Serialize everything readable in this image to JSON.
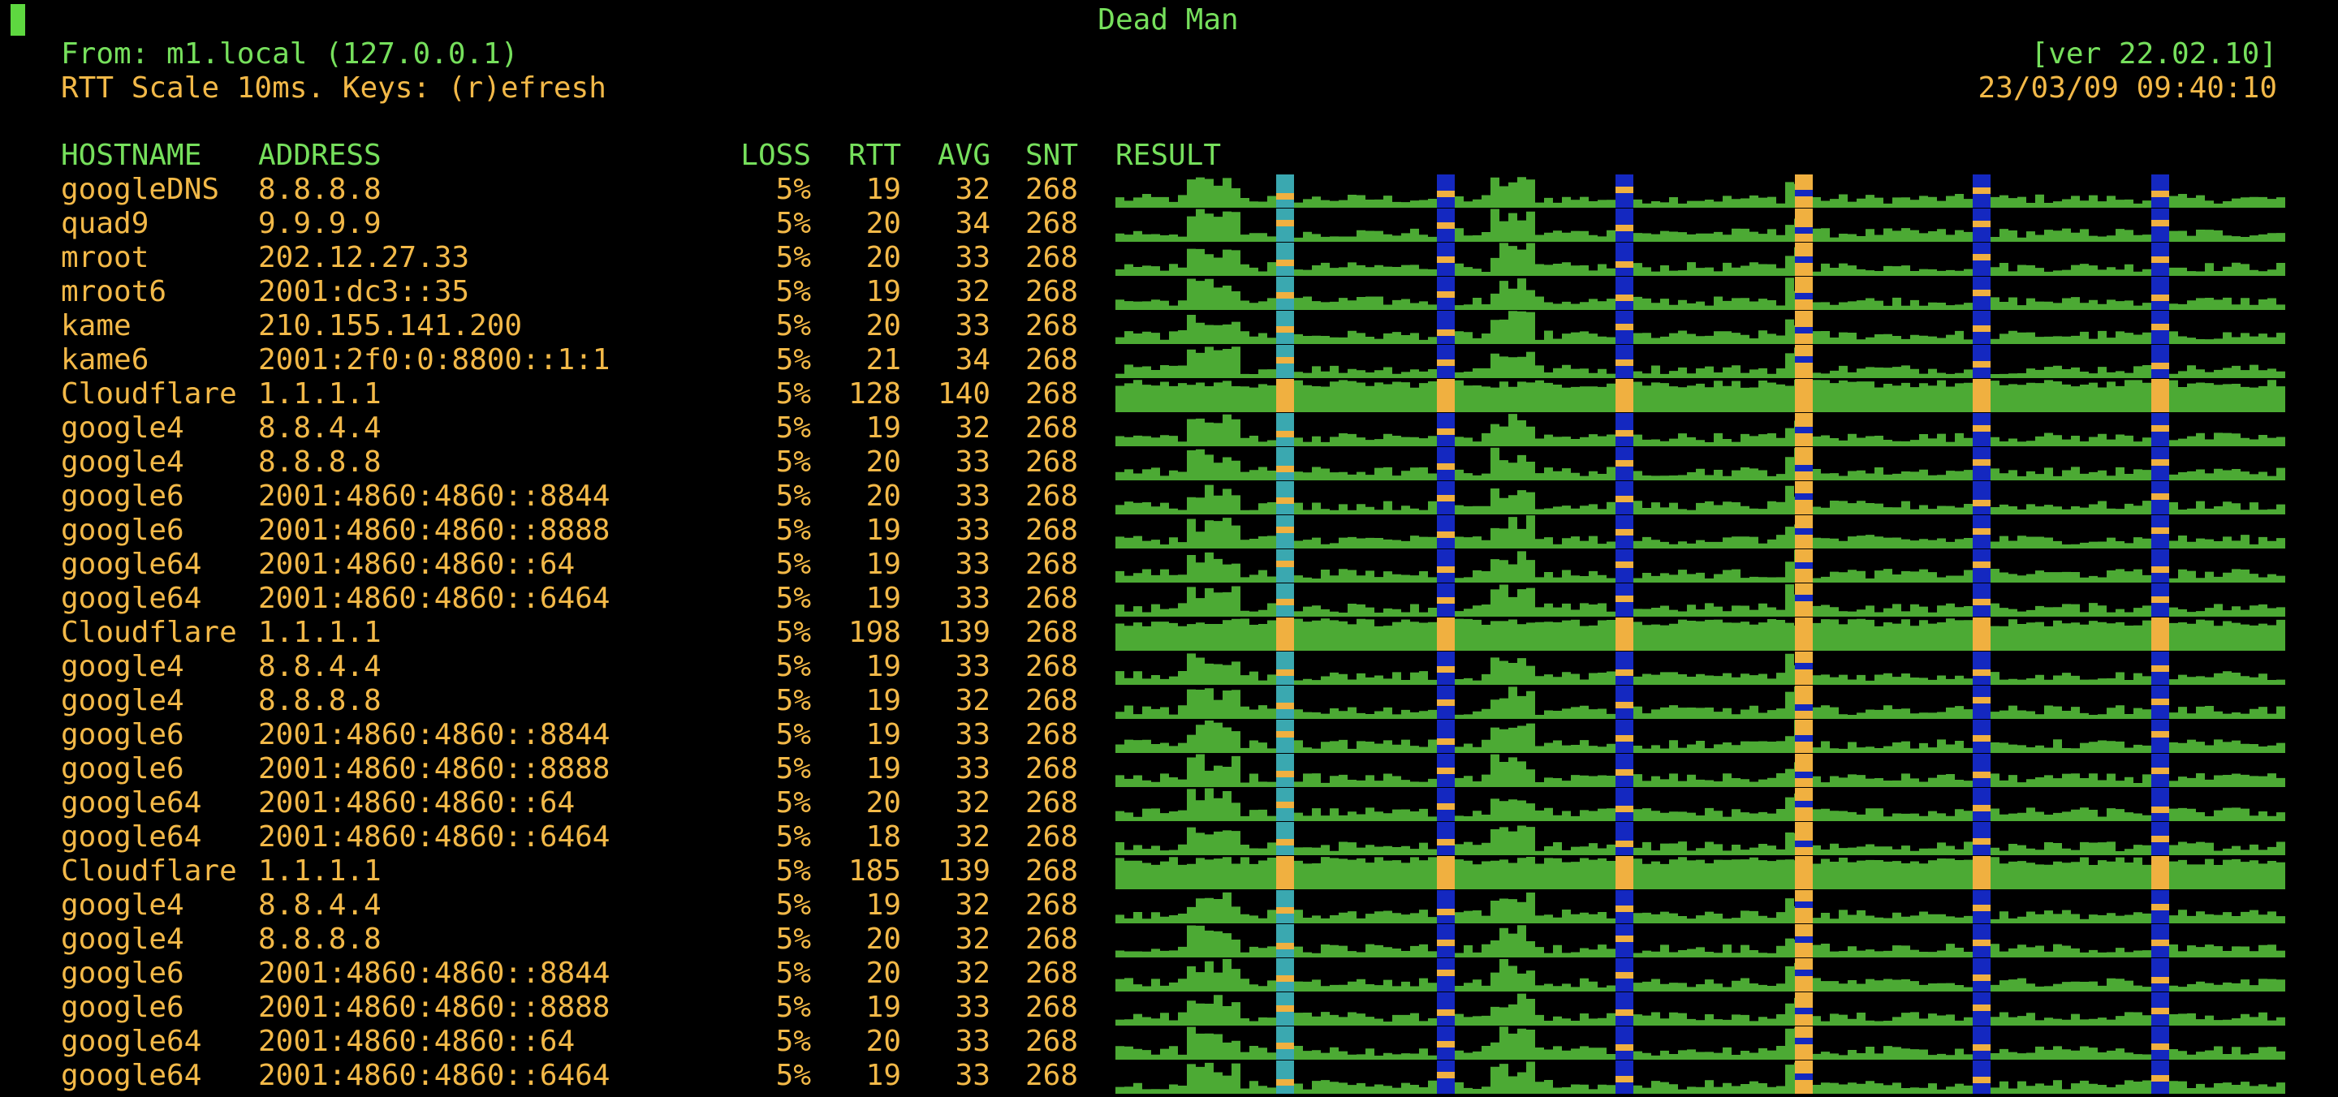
{
  "header": {
    "title": "Dead Man",
    "from": "From: m1.local (127.0.0.1)",
    "version": "[ver 22.02.10]",
    "rtt_scale": "RTT Scale 10ms. Keys: (r)efresh",
    "datetime": "23/03/09 09:40:10"
  },
  "table": {
    "columns": [
      "HOSTNAME",
      "ADDRESS",
      "LOSS",
      "RTT",
      "AVG",
      "SNT",
      "RESULT"
    ],
    "rows": [
      [
        "googleDNS",
        "8.8.8.8",
        "5%",
        "19",
        "32",
        "268"
      ],
      [
        "quad9",
        "9.9.9.9",
        "5%",
        "20",
        "34",
        "268"
      ],
      [
        "mroot",
        "202.12.27.33",
        "5%",
        "20",
        "33",
        "268"
      ],
      [
        "mroot6",
        "2001:dc3::35",
        "5%",
        "19",
        "32",
        "268"
      ],
      [
        "kame",
        "210.155.141.200",
        "5%",
        "20",
        "33",
        "268"
      ],
      [
        "kame6",
        "2001:2f0:0:8800::1:1",
        "5%",
        "21",
        "34",
        "268"
      ],
      [
        "Cloudflare",
        "1.1.1.1",
        "5%",
        "128",
        "140",
        "268"
      ],
      [
        "google4",
        "8.8.4.4",
        "5%",
        "19",
        "32",
        "268"
      ],
      [
        "google4",
        "8.8.8.8",
        "5%",
        "20",
        "33",
        "268"
      ],
      [
        "google6",
        "2001:4860:4860::8844",
        "5%",
        "20",
        "33",
        "268"
      ],
      [
        "google6",
        "2001:4860:4860::8888",
        "5%",
        "19",
        "33",
        "268"
      ],
      [
        "google64",
        "2001:4860:4860::64",
        "5%",
        "19",
        "33",
        "268"
      ],
      [
        "google64",
        "2001:4860:4860::6464",
        "5%",
        "19",
        "33",
        "268"
      ],
      [
        "Cloudflare",
        "1.1.1.1",
        "5%",
        "198",
        "139",
        "268"
      ],
      [
        "google4",
        "8.8.4.4",
        "5%",
        "19",
        "33",
        "268"
      ],
      [
        "google4",
        "8.8.8.8",
        "5%",
        "19",
        "32",
        "268"
      ],
      [
        "google6",
        "2001:4860:4860::8844",
        "5%",
        "19",
        "33",
        "268"
      ],
      [
        "google6",
        "2001:4860:4860::8888",
        "5%",
        "19",
        "33",
        "268"
      ],
      [
        "google64",
        "2001:4860:4860::64",
        "5%",
        "20",
        "32",
        "268"
      ],
      [
        "google64",
        "2001:4860:4860::6464",
        "5%",
        "18",
        "32",
        "268"
      ],
      [
        "Cloudflare",
        "1.1.1.1",
        "5%",
        "185",
        "139",
        "268"
      ],
      [
        "google4",
        "8.8.4.4",
        "5%",
        "19",
        "32",
        "268"
      ],
      [
        "google4",
        "8.8.8.8",
        "5%",
        "20",
        "32",
        "268"
      ],
      [
        "google6",
        "2001:4860:4860::8844",
        "5%",
        "20",
        "32",
        "268"
      ],
      [
        "google6",
        "2001:4860:4860::8888",
        "5%",
        "19",
        "33",
        "268"
      ],
      [
        "google64",
        "2001:4860:4860::64",
        "5%",
        "20",
        "33",
        "268"
      ],
      [
        "google64",
        "2001:4860:4860::6464",
        "5%",
        "19",
        "33",
        "268"
      ]
    ]
  }
}
